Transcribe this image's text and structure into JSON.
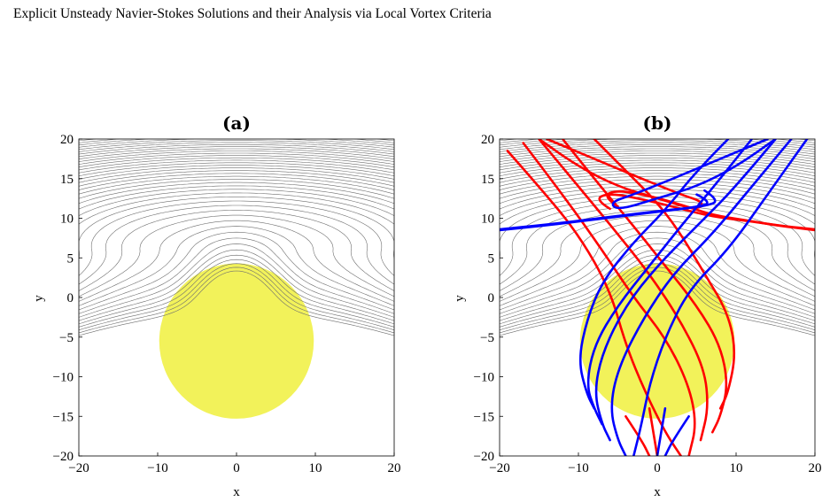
{
  "header": {
    "running_title": "Explicit Unsteady Navier-Stokes Solutions and their Analysis via Local Vortex Criteria"
  },
  "colors": {
    "contour": "#6e6e6e",
    "disk_fill": "#f2f25a",
    "red_curve": "#ff0000",
    "blue_curve": "#0000ff"
  },
  "chart_data": [
    {
      "type": "contour",
      "title": "(a)",
      "xlabel": "x",
      "ylabel": "y",
      "xlim": [
        -20,
        20
      ],
      "ylim": [
        -20,
        20
      ],
      "xticks": [
        "-20",
        "-10",
        "0",
        "10",
        "20"
      ],
      "yticks": [
        "20",
        "15",
        "10",
        "5",
        "0",
        "-5",
        "-10",
        "-15",
        "-20"
      ],
      "disk": {
        "center": [
          0,
          -5.5
        ],
        "radius": 9.8
      },
      "curves": []
    },
    {
      "type": "contour",
      "title": "(b)",
      "xlabel": "x",
      "ylabel": "y",
      "xlim": [
        -20,
        20
      ],
      "ylim": [
        -20,
        20
      ],
      "xticks": [
        "-20",
        "-10",
        "0",
        "10",
        "20"
      ],
      "yticks": [
        "20",
        "15",
        "10",
        "5",
        "0",
        "-5",
        "-10",
        "-15",
        "-20"
      ],
      "disk": {
        "center": [
          0,
          -5.5
        ],
        "radius": 9.8
      },
      "curves": [
        {
          "color": "red",
          "points": [
            [
              -19,
              18.5
            ],
            [
              -15,
              14
            ],
            [
              -10,
              8
            ],
            [
              -6,
              1
            ],
            [
              -4,
              -6
            ],
            [
              -1.5,
              -12
            ],
            [
              1,
              -17
            ],
            [
              3,
              -20
            ]
          ]
        },
        {
          "color": "red",
          "points": [
            [
              -17,
              19.5
            ],
            [
              -12,
              13
            ],
            [
              -7,
              6
            ],
            [
              -3,
              0
            ],
            [
              1,
              -5
            ],
            [
              4,
              -11
            ],
            [
              5,
              -16
            ],
            [
              4,
              -20
            ]
          ]
        },
        {
          "color": "red",
          "points": [
            [
              -15,
              20
            ],
            [
              -10,
              14
            ],
            [
              -5,
              8
            ],
            [
              -1,
              3
            ],
            [
              3,
              -3
            ],
            [
              6,
              -9
            ],
            [
              6.5,
              -14
            ],
            [
              5.5,
              -18
            ]
          ]
        },
        {
          "color": "red",
          "points": [
            [
              -12,
              20
            ],
            [
              -8,
              15
            ],
            [
              -3,
              9
            ],
            [
              1,
              4
            ],
            [
              5,
              -1
            ],
            [
              8,
              -6
            ],
            [
              9,
              -11
            ],
            [
              8,
              -15
            ],
            [
              7,
              -17
            ]
          ]
        },
        {
          "color": "red",
          "points": [
            [
              -8,
              20
            ],
            [
              -4,
              16
            ],
            [
              0,
              12
            ],
            [
              3,
              8
            ],
            [
              6,
              3
            ],
            [
              9,
              -2
            ],
            [
              10,
              -7
            ],
            [
              9,
              -12
            ],
            [
              8,
              -14
            ]
          ]
        },
        {
          "color": "red",
          "points": [
            [
              -5,
              11.5
            ],
            [
              -7,
              12.8
            ],
            [
              -5,
              13.6
            ],
            [
              0,
              12.6
            ],
            [
              4,
              11.4
            ],
            [
              7,
              10.4
            ],
            [
              11,
              9.8
            ],
            [
              15,
              9.1
            ],
            [
              20,
              8.5
            ]
          ]
        },
        {
          "color": "red",
          "points": [
            [
              -6,
              11.2
            ],
            [
              -8,
              12.4
            ],
            [
              -6,
              13.2
            ],
            [
              -1,
              12.2
            ],
            [
              3,
              11.2
            ],
            [
              7,
              10.2
            ],
            [
              12,
              9.6
            ],
            [
              16,
              9.0
            ],
            [
              20,
              8.6
            ]
          ]
        },
        {
          "color": "red",
          "points": [
            [
              -14,
              20
            ],
            [
              -8,
              17.5
            ],
            [
              -2,
              15
            ],
            [
              3,
              13
            ],
            [
              6,
              12
            ],
            [
              5,
              11
            ],
            [
              0,
              12.5
            ],
            [
              -5,
              14
            ],
            [
              -10,
              16.5
            ],
            [
              -15,
              20
            ]
          ]
        },
        {
          "color": "red",
          "points": [
            [
              -1,
              -14
            ],
            [
              -0.5,
              -17
            ],
            [
              0,
              -20
            ]
          ]
        },
        {
          "color": "red",
          "points": [
            [
              -4,
              -15
            ],
            [
              -2,
              -18
            ],
            [
              -1,
              -20
            ]
          ]
        },
        {
          "color": "blue",
          "points": [
            [
              19,
              20
            ],
            [
              14,
              13
            ],
            [
              9,
              6
            ],
            [
              4,
              1
            ],
            [
              1,
              -5
            ],
            [
              -1,
              -11
            ],
            [
              -2,
              -16
            ],
            [
              -3,
              -20
            ]
          ]
        },
        {
          "color": "blue",
          "points": [
            [
              17,
              20
            ],
            [
              12,
              14
            ],
            [
              7,
              8
            ],
            [
              2,
              3
            ],
            [
              -2,
              -3
            ],
            [
              -5,
              -9
            ],
            [
              -6,
              -14
            ],
            [
              -5,
              -18
            ],
            [
              -4,
              -20
            ]
          ]
        },
        {
          "color": "blue",
          "points": [
            [
              15,
              20
            ],
            [
              10,
              14
            ],
            [
              5,
              9
            ],
            [
              0,
              4
            ],
            [
              -4,
              -1
            ],
            [
              -7,
              -7
            ],
            [
              -8,
              -12
            ],
            [
              -7,
              -16
            ],
            [
              -6,
              -18
            ]
          ]
        },
        {
          "color": "blue",
          "points": [
            [
              12,
              20
            ],
            [
              8,
              15
            ],
            [
              3,
              9
            ],
            [
              -1,
              4
            ],
            [
              -5,
              -1
            ],
            [
              -8,
              -6
            ],
            [
              -9,
              -11
            ],
            [
              -8,
              -14
            ],
            [
              -7,
              -16
            ]
          ]
        },
        {
          "color": "blue",
          "points": [
            [
              9,
              20
            ],
            [
              5,
              16
            ],
            [
              1,
              11
            ],
            [
              -3,
              7
            ],
            [
              -7,
              2
            ],
            [
              -9,
              -3
            ],
            [
              -10,
              -8
            ],
            [
              -9,
              -12
            ],
            [
              -8,
              -14
            ]
          ]
        },
        {
          "color": "blue",
          "points": [
            [
              5,
              13
            ],
            [
              7,
              12
            ],
            [
              5,
              11.4
            ],
            [
              0,
              10.8
            ],
            [
              -5,
              10.2
            ],
            [
              -10,
              9.6
            ],
            [
              -15,
              9.0
            ],
            [
              -20,
              8.5
            ]
          ]
        },
        {
          "color": "blue",
          "points": [
            [
              6,
              13.5
            ],
            [
              8,
              12.2
            ],
            [
              6,
              11.5
            ],
            [
              1,
              11
            ],
            [
              -4,
              10.4
            ],
            [
              -9,
              9.8
            ],
            [
              -14,
              9.2
            ],
            [
              -20,
              8.6
            ]
          ]
        },
        {
          "color": "blue",
          "points": [
            [
              14,
              20
            ],
            [
              8,
              17.5
            ],
            [
              2,
              15
            ],
            [
              -3,
              13
            ],
            [
              -6,
              12
            ],
            [
              -5,
              11
            ],
            [
              0,
              12.5
            ],
            [
              5,
              14
            ],
            [
              10,
              16.5
            ],
            [
              15,
              20
            ]
          ]
        },
        {
          "color": "blue",
          "points": [
            [
              1,
              -14
            ],
            [
              0.5,
              -17
            ],
            [
              0,
              -20
            ]
          ]
        },
        {
          "color": "blue",
          "points": [
            [
              4,
              -15
            ],
            [
              2,
              -18
            ],
            [
              1,
              -20
            ]
          ]
        }
      ]
    }
  ]
}
